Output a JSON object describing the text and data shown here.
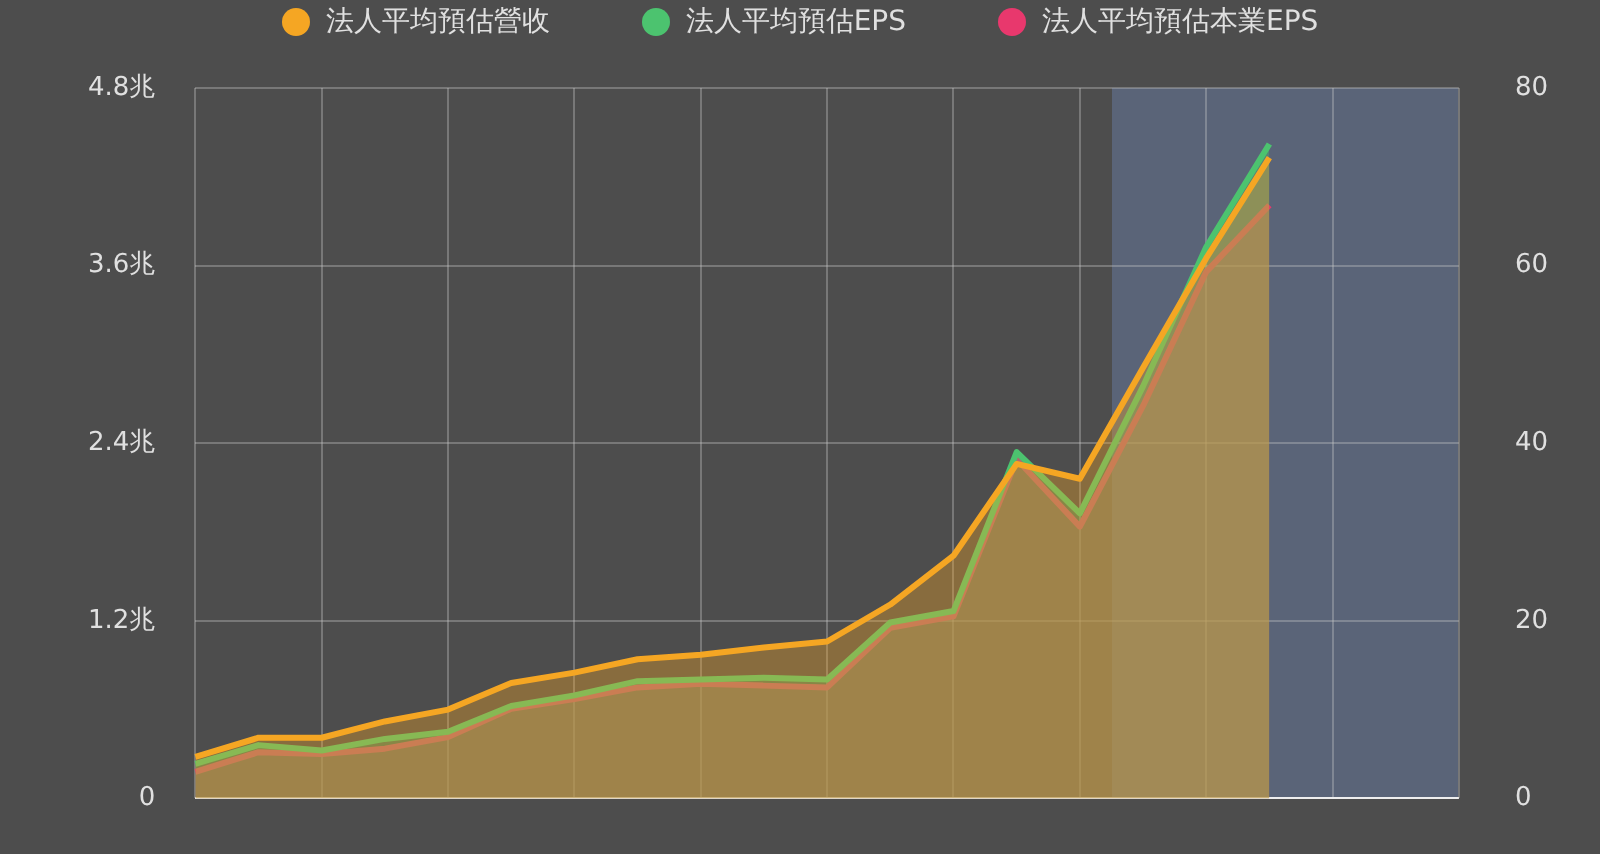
{
  "chart_data": {
    "type": "area",
    "categories": [
      null,
      null,
      null,
      null,
      null,
      null,
      null,
      null,
      null,
      null,
      null,
      null,
      null,
      null,
      null,
      null,
      null,
      null,
      null,
      null,
      null
    ],
    "series": [
      {
        "name": "法人平均預估營收",
        "color": "#f5a623",
        "values": [
          0.28,
          0.41,
          0.41,
          0.52,
          0.6,
          0.78,
          0.85,
          0.94,
          0.97,
          1.02,
          1.06,
          1.31,
          1.64,
          2.26,
          2.16,
          2.91,
          3.65,
          4.33,
          null,
          null,
          null
        ]
      },
      {
        "name": "法人平均預估EPS",
        "color": "#4cc36f",
        "axis": "y2",
        "values": [
          3.9,
          6.0,
          5.4,
          6.7,
          7.5,
          10.4,
          11.6,
          13.2,
          13.4,
          13.6,
          13.4,
          19.8,
          21.1,
          39.0,
          32.1,
          46.4,
          62.1,
          73.7,
          null,
          null,
          null
        ]
      },
      {
        "name": "法人平均預估本業EPS",
        "color": "#e8386d",
        "axis": "y2",
        "values": [
          3.0,
          5.2,
          5.0,
          5.6,
          6.9,
          10.1,
          11.2,
          12.5,
          12.9,
          12.7,
          12.5,
          19.2,
          20.5,
          38.2,
          30.6,
          44.2,
          59.3,
          66.8,
          null,
          null,
          null
        ]
      }
    ],
    "ylim": [
      0,
      4.8
    ],
    "yticks": [
      0,
      {
        "value": 1.2,
        "label": "1.2兆"
      },
      {
        "value": 2.4,
        "label": "2.4兆"
      },
      {
        "value": 3.6,
        "label": "3.6兆"
      },
      {
        "value": 4.8,
        "label": "4.8兆"
      }
    ],
    "y2lim": [
      0,
      80
    ],
    "y2ticks": [
      0,
      20,
      40,
      60,
      80
    ],
    "grid": true,
    "legend": "top",
    "tick_labels": "y",
    "marker": "none"
  }
}
